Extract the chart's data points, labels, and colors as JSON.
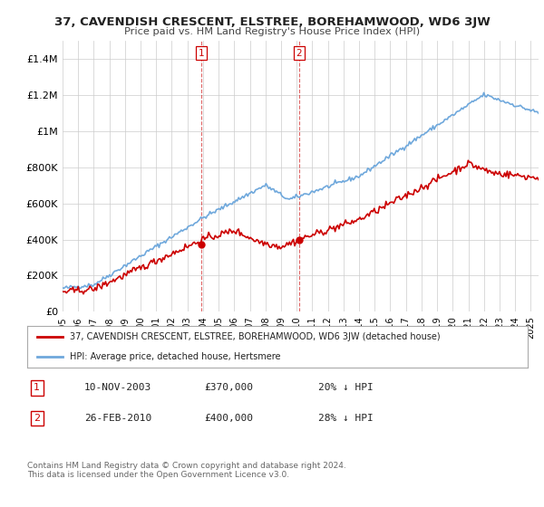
{
  "title": "37, CAVENDISH CRESCENT, ELSTREE, BOREHAMWOOD, WD6 3JW",
  "subtitle": "Price paid vs. HM Land Registry's House Price Index (HPI)",
  "hpi_color": "#6fa8dc",
  "price_color": "#cc0000",
  "bg_color": "#ffffff",
  "grid_color": "#cccccc",
  "ylim": [
    0,
    1500000
  ],
  "yticks": [
    0,
    200000,
    400000,
    600000,
    800000,
    1000000,
    1200000,
    1400000
  ],
  "ytick_labels": [
    "£0",
    "£200K",
    "£400K",
    "£600K",
    "£800K",
    "£1M",
    "£1.2M",
    "£1.4M"
  ],
  "sale1": {
    "date_num": 2003.87,
    "price": 370000,
    "label": "1",
    "date_str": "10-NOV-2003",
    "pct": "20%"
  },
  "sale2": {
    "date_num": 2010.15,
    "price": 400000,
    "label": "2",
    "date_str": "26-FEB-2010",
    "pct": "28%"
  },
  "legend_house_label": "37, CAVENDISH CRESCENT, ELSTREE, BOREHAMWOOD, WD6 3JW (detached house)",
  "legend_hpi_label": "HPI: Average price, detached house, Hertsmere",
  "footer": "Contains HM Land Registry data © Crown copyright and database right 2024.\nThis data is licensed under the Open Government Licence v3.0.",
  "table_rows": [
    {
      "num": "1",
      "date": "10-NOV-2003",
      "price": "£370,000",
      "pct": "20% ↓ HPI"
    },
    {
      "num": "2",
      "date": "26-FEB-2010",
      "price": "£400,000",
      "pct": "28% ↓ HPI"
    }
  ]
}
